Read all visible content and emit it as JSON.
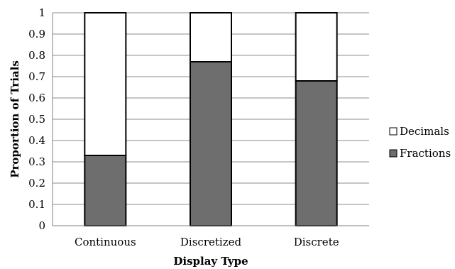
{
  "chart_data": {
    "type": "bar",
    "stacked": true,
    "categories": [
      "Continuous",
      "Discretized",
      "Discrete"
    ],
    "series": [
      {
        "name": "Fractions",
        "values": [
          0.33,
          0.77,
          0.68
        ],
        "color": "#6e6e6e"
      },
      {
        "name": "Decimals",
        "values": [
          0.67,
          0.23,
          0.32
        ],
        "color": "#ffffff"
      }
    ],
    "xlabel": "Display Type",
    "ylabel": "Proportion of Trials",
    "ylim": [
      0,
      1
    ],
    "yticks": [
      "0",
      "0.1",
      "0.2",
      "0.3",
      "0.4",
      "0.5",
      "0.6",
      "0.7",
      "0.8",
      "0.9",
      "1"
    ],
    "grid": true,
    "legend": {
      "placement": "right",
      "entries": [
        "Decimals",
        "Fractions"
      ]
    }
  }
}
